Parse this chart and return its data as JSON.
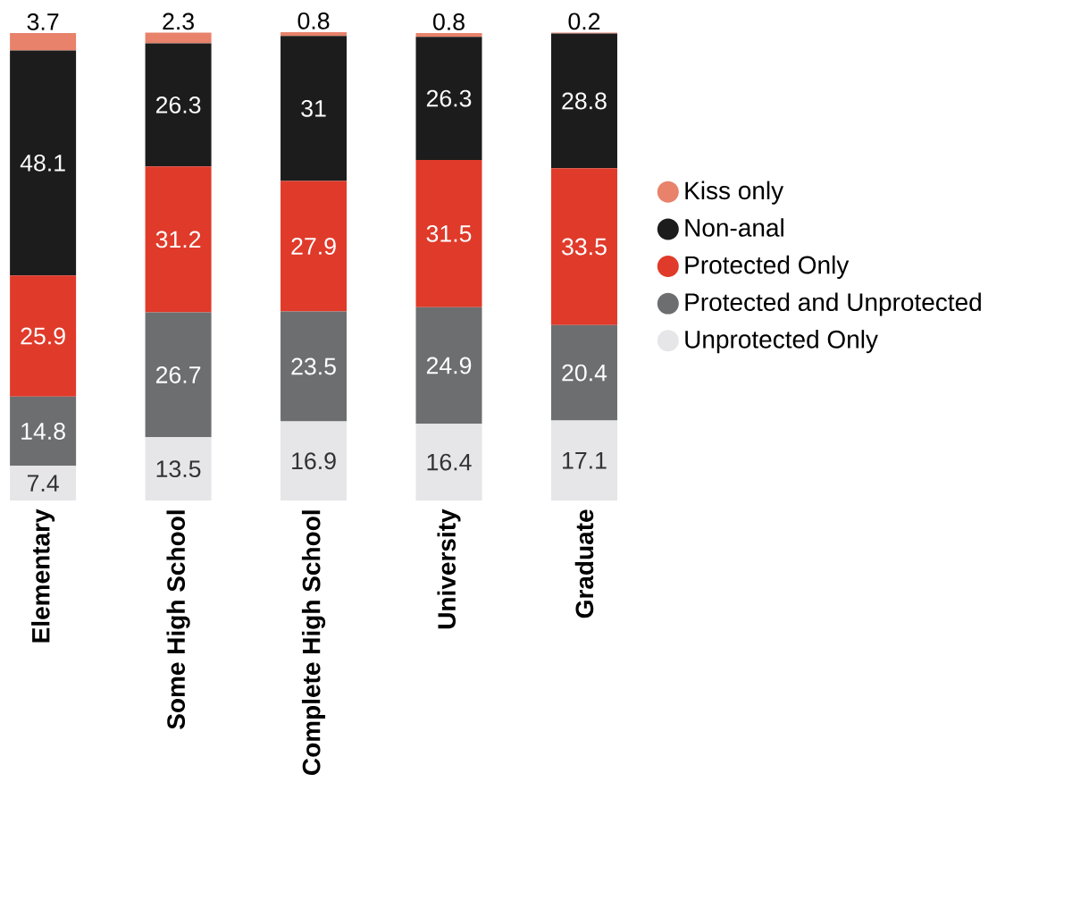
{
  "chart_data": {
    "type": "bar",
    "stacked": true,
    "data_labels": true,
    "legend": "right",
    "tick_labels": "x",
    "categories": [
      "Elementary",
      "Some High School",
      "Complete High School",
      "University",
      "Graduate"
    ],
    "series": [
      {
        "name": "Unprotected Only",
        "color": "#e6e6e8",
        "values": [
          7.4,
          13.5,
          16.9,
          16.4,
          17.1
        ]
      },
      {
        "name": "Protected and Unprotected",
        "color": "#6d6e70",
        "values": [
          14.8,
          26.7,
          23.5,
          24.9,
          20.4
        ]
      },
      {
        "name": "Protected Only",
        "color": "#e03a2a",
        "values": [
          25.9,
          31.2,
          27.9,
          31.5,
          33.5
        ]
      },
      {
        "name": "Non-anal",
        "color": "#1c1c1c",
        "values": [
          48.1,
          26.3,
          31,
          26.3,
          28.8
        ]
      },
      {
        "name": "Kiss only",
        "color": "#e8826a",
        "values": [
          3.7,
          2.3,
          0.8,
          0.8,
          0.2
        ]
      }
    ]
  }
}
